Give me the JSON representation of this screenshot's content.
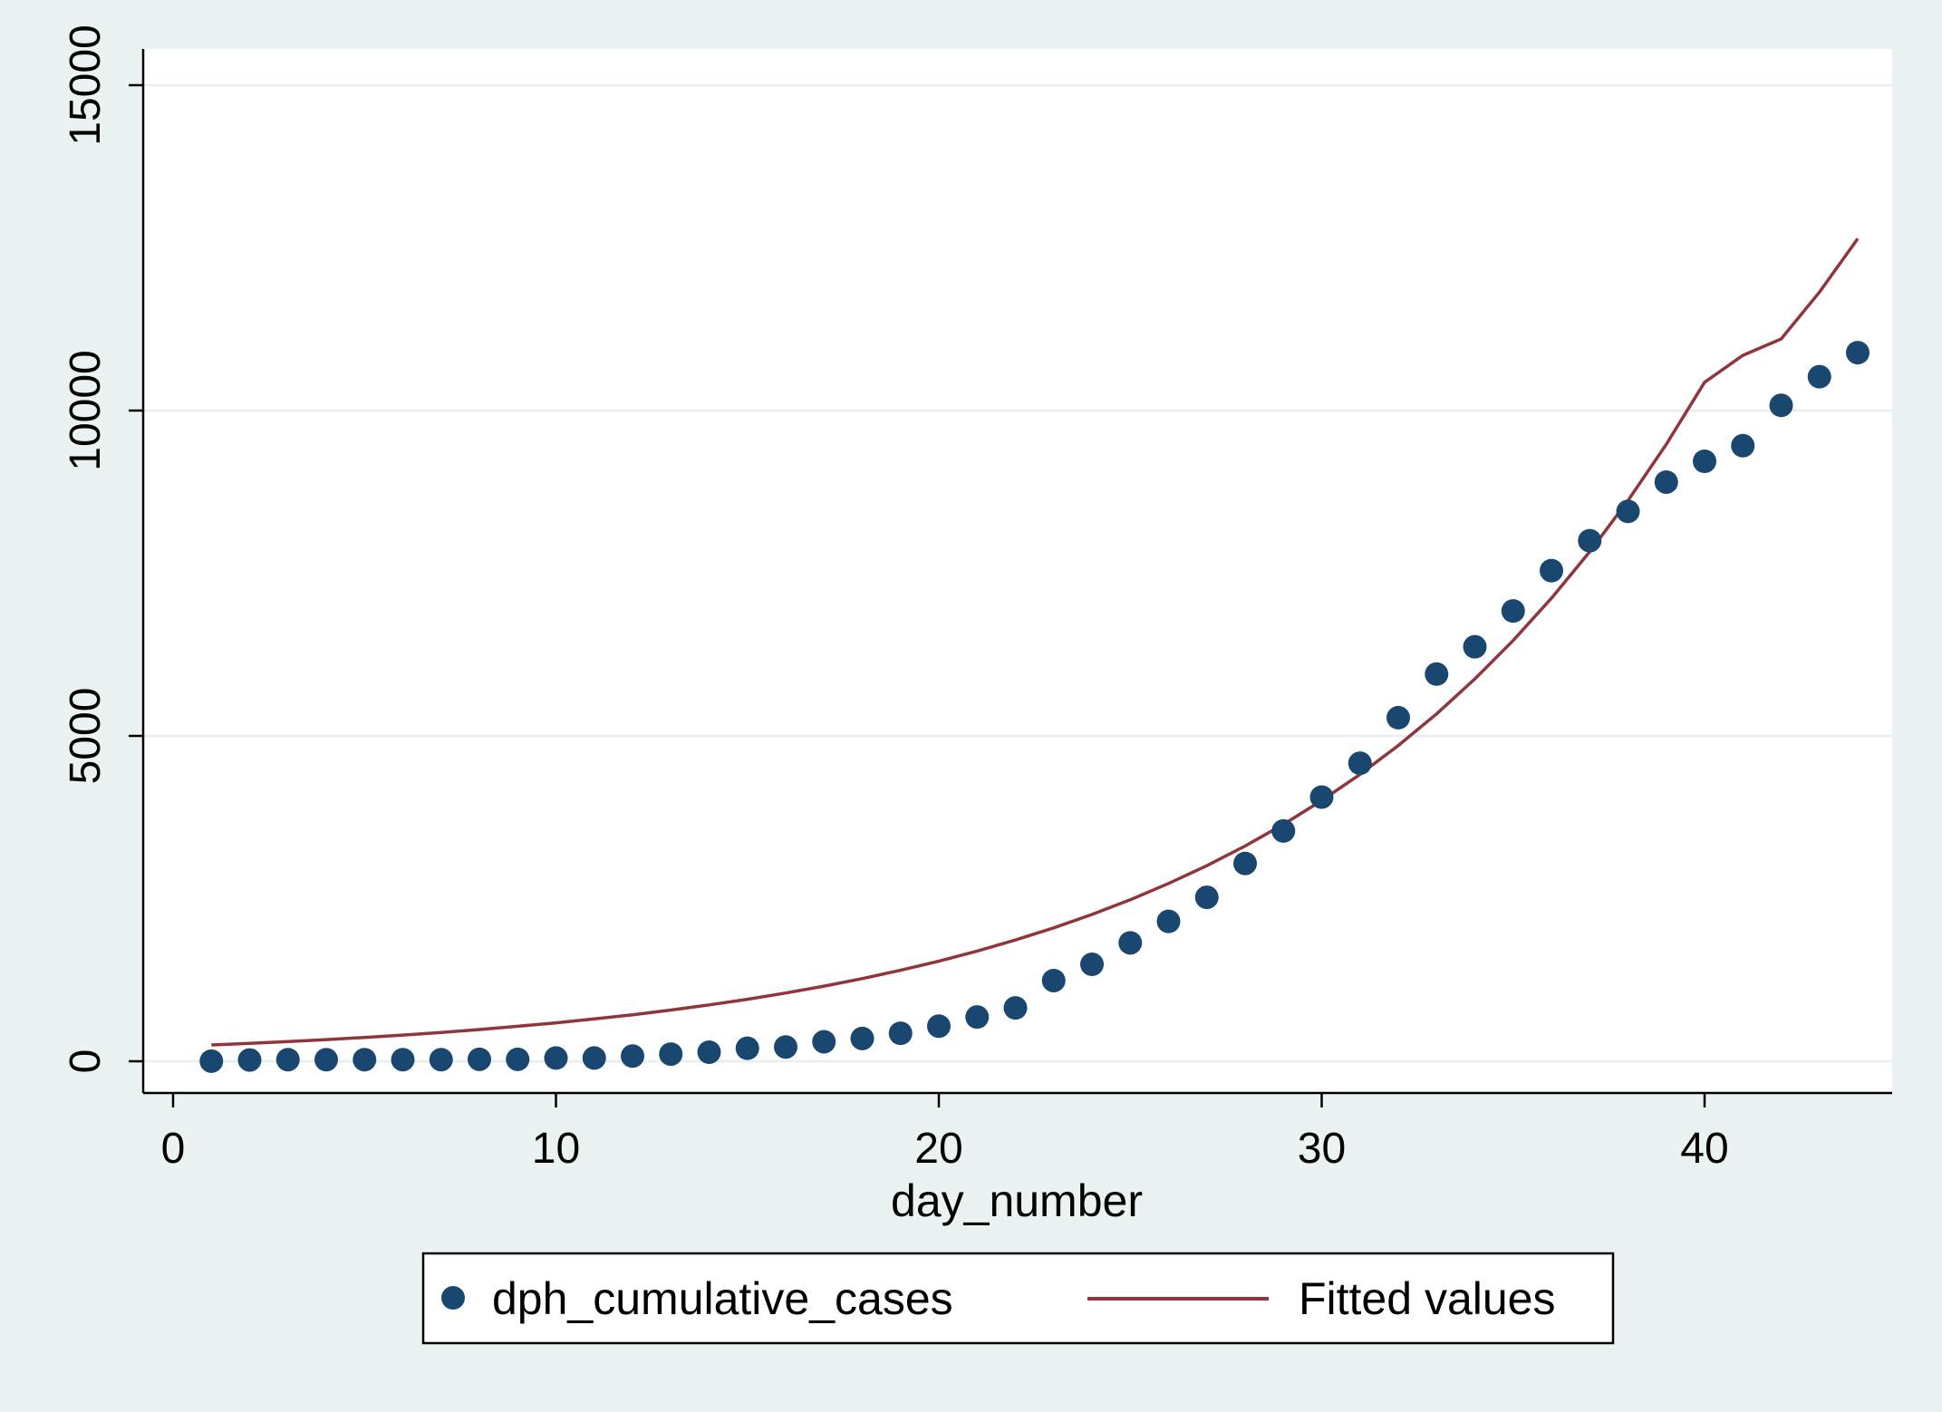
{
  "chart_data": {
    "type": "scatter",
    "xlabel": "day_number",
    "ylabel": "",
    "xlim": [
      0,
      45
    ],
    "ylim": [
      0,
      15000
    ],
    "xticks": [
      0,
      10,
      20,
      30,
      40
    ],
    "yticks": [
      0,
      5000,
      10000,
      15000
    ],
    "grid": "horizontal",
    "legend_position": "bottom",
    "colors": {
      "points": "#1a476f",
      "fit": "#90353b",
      "plot_bg": "#ffffff",
      "outer_bg": "#eaf2f3",
      "grid": "#eaf2f3"
    },
    "series": [
      {
        "name": "dph_cumulative_cases",
        "kind": "scatter",
        "x": [
          1,
          2,
          3,
          4,
          5,
          6,
          7,
          8,
          9,
          10,
          11,
          12,
          13,
          14,
          15,
          16,
          17,
          18,
          19,
          20,
          21,
          22,
          23,
          24,
          25,
          26,
          27,
          28,
          29,
          30,
          31,
          32,
          33,
          34,
          35,
          36,
          37,
          38,
          39,
          40,
          41,
          42,
          43,
          44
        ],
        "y": [
          2,
          20,
          25,
          25,
          25,
          25,
          25,
          30,
          30,
          50,
          50,
          80,
          110,
          140,
          200,
          220,
          300,
          350,
          430,
          540,
          680,
          820,
          1240,
          1490,
          1820,
          2150,
          2520,
          3040,
          3540,
          4060,
          4580,
          5280,
          5950,
          6370,
          6920,
          7540,
          8000,
          8450,
          8900,
          9220,
          9460,
          10080,
          10520,
          10890
        ]
      },
      {
        "name": "Fitted values",
        "kind": "line",
        "x": [
          1,
          2,
          3,
          4,
          5,
          6,
          7,
          8,
          9,
          10,
          11,
          12,
          13,
          14,
          15,
          16,
          17,
          18,
          19,
          20,
          21,
          22,
          23,
          24,
          25,
          26,
          27,
          28,
          29,
          30,
          31,
          32,
          33,
          34,
          35,
          36,
          37,
          38,
          39,
          40,
          41,
          42,
          43,
          44
        ],
        "y": [
          250,
          275,
          302,
          333,
          366,
          403,
          443,
          488,
          537,
          591,
          650,
          715,
          787,
          866,
          953,
          1049,
          1154,
          1270,
          1398,
          1538,
          1693,
          1863,
          2050,
          2256,
          2482,
          2732,
          3006,
          3308,
          3641,
          4007,
          4409,
          4852,
          5339,
          5876,
          6466,
          7116,
          7830,
          8617,
          9482,
          10435,
          10848,
          11100,
          11820,
          12640
        ]
      }
    ]
  }
}
